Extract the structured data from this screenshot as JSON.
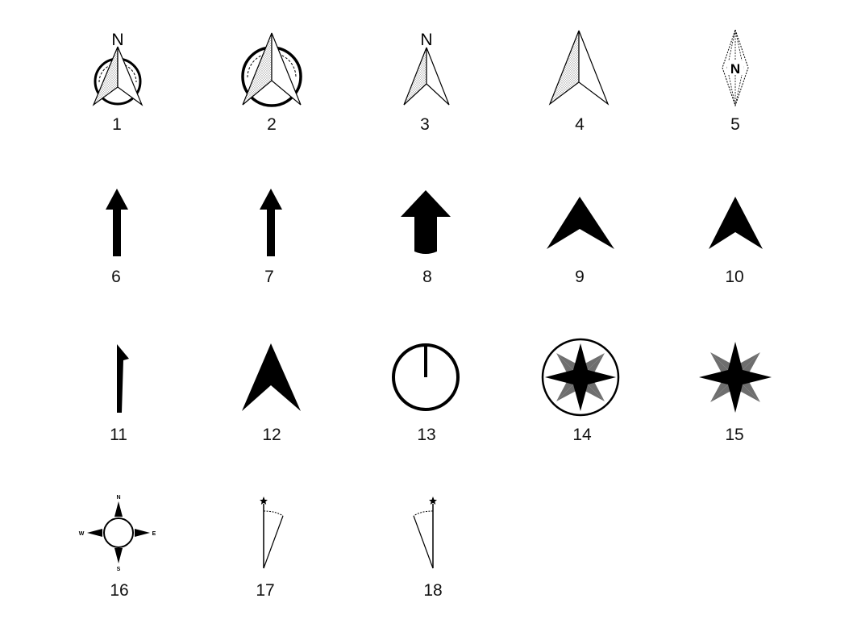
{
  "arrows": [
    {
      "number": "1",
      "icon": "north-arrow-circle-labeled-icon",
      "letter": "N"
    },
    {
      "number": "2",
      "icon": "north-arrow-circle-icon"
    },
    {
      "number": "3",
      "icon": "north-arrow-labeled-icon",
      "letter": "N"
    },
    {
      "number": "4",
      "icon": "north-arrow-half-shaded-icon"
    },
    {
      "number": "5",
      "icon": "north-diamond-compass-icon",
      "letter": "N"
    },
    {
      "number": "6",
      "icon": "north-arrow-thin-solid-icon"
    },
    {
      "number": "7",
      "icon": "north-arrow-thin-solid-icon"
    },
    {
      "number": "8",
      "icon": "north-arrow-thick-solid-icon"
    },
    {
      "number": "9",
      "icon": "north-chevron-solid-icon"
    },
    {
      "number": "10",
      "icon": "north-chevron-solid-icon"
    },
    {
      "number": "11",
      "icon": "north-flag-line-icon"
    },
    {
      "number": "12",
      "icon": "north-arrowhead-solid-icon"
    },
    {
      "number": "13",
      "icon": "north-circle-needle-icon"
    },
    {
      "number": "14",
      "icon": "compass-rose-circle-icon"
    },
    {
      "number": "15",
      "icon": "compass-rose-star-icon"
    },
    {
      "number": "16",
      "icon": "compass-cardinal-points-icon",
      "directions": [
        "N",
        "E",
        "S",
        "W"
      ]
    },
    {
      "number": "17",
      "icon": "true-north-declination-icon"
    },
    {
      "number": "18",
      "icon": "true-north-declination-icon"
    }
  ],
  "colors": {
    "ink": "#000000",
    "label": "#111111",
    "stipple": "#9a9a9a",
    "rose_secondary": "#6e6e6e",
    "background": "#ffffff"
  }
}
